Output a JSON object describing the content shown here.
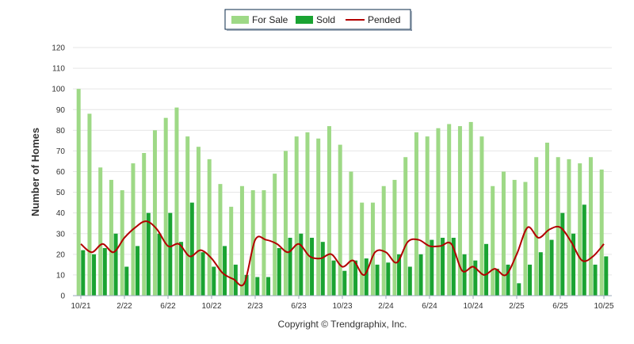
{
  "chart_data": {
    "type": "bar",
    "ylabel": "Number of Homes",
    "ylim": [
      0,
      120
    ],
    "yticks": [
      0,
      10,
      20,
      30,
      40,
      50,
      60,
      70,
      80,
      90,
      100,
      110,
      120
    ],
    "grid": true,
    "legend_position": "top-center",
    "x_tick_labels": [
      "10/21",
      "2/22",
      "6/22",
      "10/22",
      "2/23",
      "6/23",
      "10/23",
      "2/24",
      "6/24",
      "10/24",
      "2/25",
      "6/25",
      "10/25"
    ],
    "categories": [
      "10/21",
      "11/21",
      "12/21",
      "1/22",
      "2/22",
      "3/22",
      "4/22",
      "5/22",
      "6/22",
      "7/22",
      "8/22",
      "9/22",
      "10/22",
      "11/22",
      "12/22",
      "1/23",
      "2/23",
      "3/23",
      "4/23",
      "5/23",
      "6/23",
      "7/23",
      "8/23",
      "9/23",
      "10/23",
      "11/23",
      "12/23",
      "1/24",
      "2/24",
      "3/24",
      "4/24",
      "5/24",
      "6/24",
      "7/24",
      "8/24",
      "9/24",
      "10/24",
      "11/24",
      "12/24",
      "1/25",
      "2/25",
      "3/25",
      "4/25",
      "5/25",
      "6/25",
      "7/25",
      "8/25",
      "9/25",
      "10/25"
    ],
    "series": [
      {
        "name": "For Sale",
        "type": "bar",
        "color": "#9ed986",
        "values": [
          100,
          88,
          62,
          56,
          51,
          64,
          69,
          80,
          86,
          91,
          77,
          72,
          66,
          54,
          43,
          53,
          51,
          51,
          59,
          70,
          77,
          79,
          76,
          82,
          73,
          60,
          45,
          45,
          53,
          56,
          67,
          79,
          77,
          81,
          83,
          82,
          84,
          77,
          53,
          60,
          56,
          55,
          67,
          74,
          67,
          66,
          64,
          67,
          61
        ]
      },
      {
        "name": "Sold",
        "type": "bar",
        "color": "#1aa332",
        "values": [
          22,
          20,
          23,
          30,
          14,
          24,
          40,
          30,
          40,
          26,
          45,
          21,
          14,
          24,
          15,
          10,
          9,
          9,
          23,
          28,
          30,
          28,
          26,
          17,
          12,
          17,
          18,
          15,
          16,
          20,
          14,
          20,
          27,
          28,
          28,
          20,
          17,
          25,
          13,
          15,
          6,
          15,
          21,
          27,
          40,
          30,
          44,
          15,
          19
        ]
      },
      {
        "name": "Pended",
        "type": "line",
        "color": "#b30000",
        "values": [
          25,
          21,
          25,
          21,
          28,
          33,
          36,
          32,
          24,
          25,
          19,
          22,
          18,
          11,
          8,
          6,
          27,
          27,
          25,
          21,
          25,
          19,
          18,
          20,
          14,
          17,
          10,
          21,
          21,
          16,
          26,
          27,
          24,
          24,
          25,
          12,
          14,
          10,
          13,
          10,
          20,
          33,
          28,
          32,
          33,
          26,
          17,
          19,
          25
        ]
      }
    ]
  },
  "footer": {
    "copyright": "Copyright © Trendgraphix, Inc."
  }
}
